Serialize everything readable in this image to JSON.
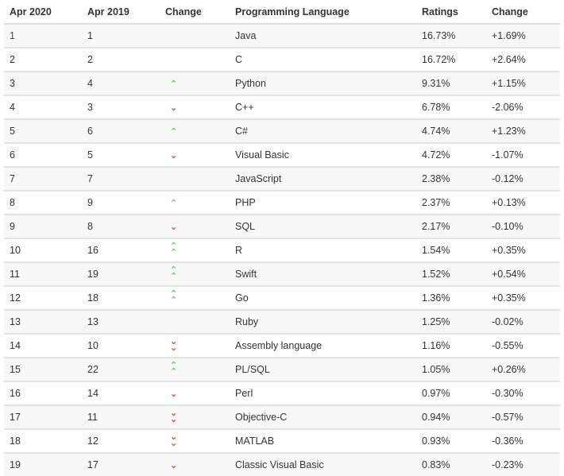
{
  "header": {
    "apr2020": "Apr 2020",
    "apr2019": "Apr 2019",
    "change": "Change",
    "language": "Programming Language",
    "ratings": "Ratings",
    "change_pct": "Change"
  },
  "colors": {
    "up": "#7cc576",
    "down": "#e8582a"
  },
  "rows": [
    {
      "apr2020": "1",
      "apr2019": "1",
      "trend": "none",
      "language": "Java",
      "ratings": "16.73%",
      "change": "+1.69%"
    },
    {
      "apr2020": "2",
      "apr2019": "2",
      "trend": "none",
      "language": "C",
      "ratings": "16.72%",
      "change": "+2.64%"
    },
    {
      "apr2020": "3",
      "apr2019": "4",
      "trend": "up",
      "language": "Python",
      "ratings": "9.31%",
      "change": "+1.15%"
    },
    {
      "apr2020": "4",
      "apr2019": "3",
      "trend": "down",
      "language": "C++",
      "ratings": "6.78%",
      "change": "-2.06%"
    },
    {
      "apr2020": "5",
      "apr2019": "6",
      "trend": "up",
      "language": "C#",
      "ratings": "4.74%",
      "change": "+1.23%"
    },
    {
      "apr2020": "6",
      "apr2019": "5",
      "trend": "down",
      "language": "Visual Basic",
      "ratings": "4.72%",
      "change": "-1.07%"
    },
    {
      "apr2020": "7",
      "apr2019": "7",
      "trend": "none",
      "language": "JavaScript",
      "ratings": "2.38%",
      "change": "-0.12%"
    },
    {
      "apr2020": "8",
      "apr2019": "9",
      "trend": "up",
      "language": "PHP",
      "ratings": "2.37%",
      "change": "+0.13%"
    },
    {
      "apr2020": "9",
      "apr2019": "8",
      "trend": "down",
      "language": "SQL",
      "ratings": "2.17%",
      "change": "-0.10%"
    },
    {
      "apr2020": "10",
      "apr2019": "16",
      "trend": "up2",
      "language": "R",
      "ratings": "1.54%",
      "change": "+0.35%"
    },
    {
      "apr2020": "11",
      "apr2019": "19",
      "trend": "up2",
      "language": "Swift",
      "ratings": "1.52%",
      "change": "+0.54%"
    },
    {
      "apr2020": "12",
      "apr2019": "18",
      "trend": "up2",
      "language": "Go",
      "ratings": "1.36%",
      "change": "+0.35%"
    },
    {
      "apr2020": "13",
      "apr2019": "13",
      "trend": "none",
      "language": "Ruby",
      "ratings": "1.25%",
      "change": "-0.02%"
    },
    {
      "apr2020": "14",
      "apr2019": "10",
      "trend": "down2",
      "language": "Assembly language",
      "ratings": "1.16%",
      "change": "-0.55%"
    },
    {
      "apr2020": "15",
      "apr2019": "22",
      "trend": "up2",
      "language": "PL/SQL",
      "ratings": "1.05%",
      "change": "+0.26%"
    },
    {
      "apr2020": "16",
      "apr2019": "14",
      "trend": "down",
      "language": "Perl",
      "ratings": "0.97%",
      "change": "-0.30%"
    },
    {
      "apr2020": "17",
      "apr2019": "11",
      "trend": "down2",
      "language": "Objective-C",
      "ratings": "0.94%",
      "change": "-0.57%"
    },
    {
      "apr2020": "18",
      "apr2019": "12",
      "trend": "down2",
      "language": "MATLAB",
      "ratings": "0.93%",
      "change": "-0.36%"
    },
    {
      "apr2020": "19",
      "apr2019": "17",
      "trend": "down",
      "language": "Classic Visual Basic",
      "ratings": "0.83%",
      "change": "-0.23%"
    }
  ]
}
